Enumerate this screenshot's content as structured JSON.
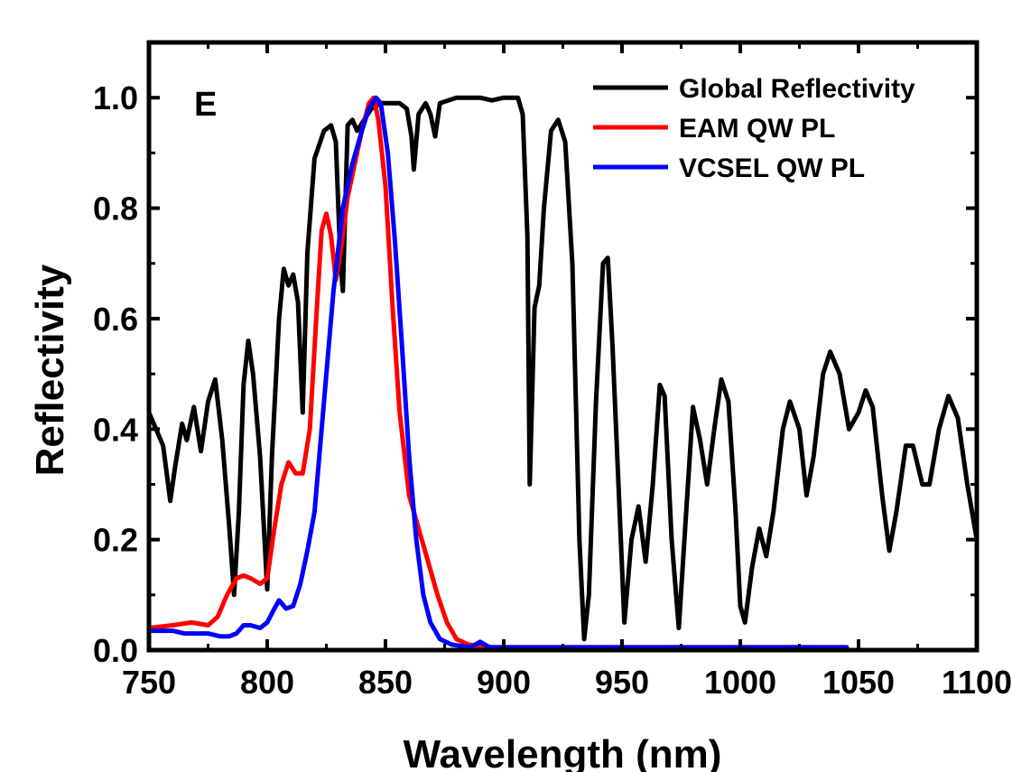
{
  "chart_data": {
    "type": "line",
    "panel_label": "E",
    "xlabel": "Wavelength (nm)",
    "ylabel": "Reflectivity",
    "xlim": [
      750,
      1100
    ],
    "ylim": [
      0,
      1.1
    ],
    "x_ticks": [
      750,
      800,
      850,
      900,
      950,
      1000,
      1050,
      1100
    ],
    "x_tick_labels": [
      "750",
      "800",
      "850",
      "900",
      "950",
      "1000",
      "1050",
      "1100"
    ],
    "y_ticks": [
      0,
      0.2,
      0.4,
      0.6,
      0.8,
      1.0
    ],
    "y_tick_labels": [
      "0.0",
      "0.2",
      "0.4",
      "0.6",
      "0.8",
      "1.0"
    ],
    "legend_position": "top-right",
    "grid": false,
    "series": [
      {
        "name": "Global Reflectivity",
        "color": "#000000",
        "points": [
          [
            750,
            0.43
          ],
          [
            753,
            0.4
          ],
          [
            756,
            0.37
          ],
          [
            759,
            0.27
          ],
          [
            761,
            0.33
          ],
          [
            764,
            0.41
          ],
          [
            766,
            0.38
          ],
          [
            769,
            0.44
          ],
          [
            772,
            0.36
          ],
          [
            775,
            0.45
          ],
          [
            778,
            0.49
          ],
          [
            781,
            0.38
          ],
          [
            784,
            0.22
          ],
          [
            786,
            0.1
          ],
          [
            788,
            0.25
          ],
          [
            790,
            0.48
          ],
          [
            792,
            0.56
          ],
          [
            794,
            0.5
          ],
          [
            797,
            0.35
          ],
          [
            800,
            0.11
          ],
          [
            802,
            0.35
          ],
          [
            805,
            0.6
          ],
          [
            807,
            0.69
          ],
          [
            809,
            0.66
          ],
          [
            811,
            0.68
          ],
          [
            813,
            0.63
          ],
          [
            815,
            0.43
          ],
          [
            817,
            0.72
          ],
          [
            820,
            0.89
          ],
          [
            824,
            0.94
          ],
          [
            827,
            0.95
          ],
          [
            829,
            0.92
          ],
          [
            831,
            0.7
          ],
          [
            832,
            0.65
          ],
          [
            834,
            0.95
          ],
          [
            836,
            0.96
          ],
          [
            838,
            0.94
          ],
          [
            841,
            0.96
          ],
          [
            844,
            0.98
          ],
          [
            848,
            0.99
          ],
          [
            852,
            0.99
          ],
          [
            856,
            0.99
          ],
          [
            859,
            0.98
          ],
          [
            861,
            0.93
          ],
          [
            862,
            0.87
          ],
          [
            864,
            0.97
          ],
          [
            867,
            0.99
          ],
          [
            869,
            0.97
          ],
          [
            871,
            0.93
          ],
          [
            873,
            0.99
          ],
          [
            880,
            1.0
          ],
          [
            890,
            1.0
          ],
          [
            895,
            0.995
          ],
          [
            900,
            1.0
          ],
          [
            906,
            1.0
          ],
          [
            908,
            0.97
          ],
          [
            910,
            0.75
          ],
          [
            911,
            0.3
          ],
          [
            913,
            0.62
          ],
          [
            915,
            0.66
          ],
          [
            917,
            0.8
          ],
          [
            920,
            0.94
          ],
          [
            923,
            0.96
          ],
          [
            926,
            0.92
          ],
          [
            929,
            0.7
          ],
          [
            932,
            0.2
          ],
          [
            934,
            0.02
          ],
          [
            936,
            0.1
          ],
          [
            939,
            0.45
          ],
          [
            942,
            0.7
          ],
          [
            944,
            0.71
          ],
          [
            946,
            0.55
          ],
          [
            949,
            0.25
          ],
          [
            951,
            0.05
          ],
          [
            954,
            0.2
          ],
          [
            957,
            0.26
          ],
          [
            960,
            0.16
          ],
          [
            963,
            0.3
          ],
          [
            966,
            0.48
          ],
          [
            968,
            0.46
          ],
          [
            971,
            0.2
          ],
          [
            974,
            0.04
          ],
          [
            977,
            0.24
          ],
          [
            980,
            0.44
          ],
          [
            983,
            0.38
          ],
          [
            986,
            0.3
          ],
          [
            989,
            0.4
          ],
          [
            992,
            0.49
          ],
          [
            995,
            0.45
          ],
          [
            998,
            0.25
          ],
          [
            1000,
            0.08
          ],
          [
            1002,
            0.05
          ],
          [
            1005,
            0.15
          ],
          [
            1008,
            0.22
          ],
          [
            1011,
            0.17
          ],
          [
            1014,
            0.25
          ],
          [
            1018,
            0.4
          ],
          [
            1021,
            0.45
          ],
          [
            1025,
            0.4
          ],
          [
            1028,
            0.28
          ],
          [
            1031,
            0.35
          ],
          [
            1035,
            0.5
          ],
          [
            1038,
            0.54
          ],
          [
            1042,
            0.5
          ],
          [
            1046,
            0.4
          ],
          [
            1050,
            0.43
          ],
          [
            1053,
            0.47
          ],
          [
            1056,
            0.44
          ],
          [
            1060,
            0.28
          ],
          [
            1063,
            0.18
          ],
          [
            1066,
            0.25
          ],
          [
            1070,
            0.37
          ],
          [
            1073,
            0.37
          ],
          [
            1077,
            0.3
          ],
          [
            1080,
            0.3
          ],
          [
            1084,
            0.4
          ],
          [
            1088,
            0.46
          ],
          [
            1092,
            0.42
          ],
          [
            1096,
            0.3
          ],
          [
            1100,
            0.2
          ]
        ]
      },
      {
        "name": "EAM QW PL",
        "color": "#ff0000",
        "points": [
          [
            750,
            0.04
          ],
          [
            760,
            0.045
          ],
          [
            768,
            0.05
          ],
          [
            775,
            0.045
          ],
          [
            779,
            0.06
          ],
          [
            783,
            0.1
          ],
          [
            787,
            0.13
          ],
          [
            790,
            0.135
          ],
          [
            793,
            0.13
          ],
          [
            797,
            0.12
          ],
          [
            800,
            0.13
          ],
          [
            803,
            0.22
          ],
          [
            806,
            0.3
          ],
          [
            809,
            0.34
          ],
          [
            812,
            0.32
          ],
          [
            815,
            0.32
          ],
          [
            818,
            0.4
          ],
          [
            821,
            0.62
          ],
          [
            823,
            0.76
          ],
          [
            825,
            0.79
          ],
          [
            827,
            0.75
          ],
          [
            829,
            0.67
          ],
          [
            831,
            0.72
          ],
          [
            834,
            0.82
          ],
          [
            837,
            0.88
          ],
          [
            840,
            0.94
          ],
          [
            843,
            0.99
          ],
          [
            845,
            1.0
          ],
          [
            847,
            0.96
          ],
          [
            850,
            0.84
          ],
          [
            853,
            0.62
          ],
          [
            856,
            0.43
          ],
          [
            860,
            0.28
          ],
          [
            864,
            0.22
          ],
          [
            868,
            0.16
          ],
          [
            872,
            0.1
          ],
          [
            876,
            0.05
          ],
          [
            880,
            0.02
          ],
          [
            885,
            0.01
          ],
          [
            895,
            0.005
          ],
          [
            1000,
            0.005
          ],
          [
            1045,
            0.005
          ]
        ]
      },
      {
        "name": "VCSEL QW PL",
        "color": "#0000ff",
        "points": [
          [
            750,
            0.035
          ],
          [
            760,
            0.035
          ],
          [
            765,
            0.03
          ],
          [
            775,
            0.03
          ],
          [
            780,
            0.025
          ],
          [
            784,
            0.025
          ],
          [
            787,
            0.03
          ],
          [
            790,
            0.045
          ],
          [
            793,
            0.045
          ],
          [
            797,
            0.04
          ],
          [
            800,
            0.05
          ],
          [
            803,
            0.075
          ],
          [
            805,
            0.09
          ],
          [
            808,
            0.075
          ],
          [
            811,
            0.08
          ],
          [
            814,
            0.12
          ],
          [
            817,
            0.18
          ],
          [
            820,
            0.25
          ],
          [
            824,
            0.45
          ],
          [
            828,
            0.65
          ],
          [
            832,
            0.8
          ],
          [
            836,
            0.88
          ],
          [
            840,
            0.94
          ],
          [
            843,
            0.98
          ],
          [
            846,
            1.0
          ],
          [
            848,
            0.99
          ],
          [
            851,
            0.9
          ],
          [
            854,
            0.74
          ],
          [
            857,
            0.55
          ],
          [
            860,
            0.35
          ],
          [
            863,
            0.2
          ],
          [
            866,
            0.1
          ],
          [
            869,
            0.05
          ],
          [
            873,
            0.02
          ],
          [
            878,
            0.01
          ],
          [
            886,
            0.005
          ],
          [
            890,
            0.015
          ],
          [
            894,
            0.005
          ],
          [
            900,
            0.005
          ],
          [
            1000,
            0.005
          ],
          [
            1045,
            0.005
          ]
        ]
      }
    ]
  }
}
